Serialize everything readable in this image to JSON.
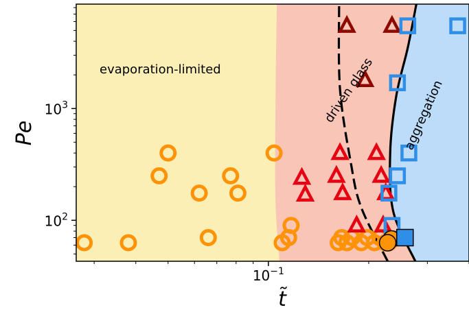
{
  "chart_data": {
    "type": "scatter",
    "xlabel": "t̃",
    "ylabel": "Pe",
    "xscale": "log",
    "yscale": "log",
    "xlim": [
      0.0265,
      0.4
    ],
    "ylim": [
      43,
      8600
    ],
    "x_ticks": [
      {
        "value": 0.1,
        "base": "10",
        "exp": "−1"
      }
    ],
    "y_ticks": [
      {
        "value": 100,
        "base": "10",
        "exp": "2"
      },
      {
        "value": 1000,
        "base": "10",
        "exp": "3"
      }
    ],
    "grid": false,
    "legend": "none",
    "colors": {
      "evaporation_region": "#fbefb5",
      "glass_region": "#f9c5b7",
      "aggregation_region": "#bcdcfa",
      "orange": "#ff9308",
      "red": "#e50012",
      "dark_red": "#8e0a00",
      "blue": "#2f8fe8",
      "boundary": "#000000"
    },
    "regions": [
      {
        "name": "evaporation-limited",
        "label": "evaporation-limited"
      },
      {
        "name": "driven-glass",
        "label": "driven glass"
      },
      {
        "name": "aggregation",
        "label": "aggregation"
      }
    ],
    "boundary_glass_evaporation": [
      [
        0.108,
        43
      ],
      [
        0.105,
        150
      ],
      [
        0.105,
        1000
      ],
      [
        0.106,
        8600
      ]
    ],
    "boundary_dashed": [
      [
        0.228,
        43
      ],
      [
        0.19,
        130
      ],
      [
        0.177,
        320
      ],
      [
        0.164,
        1500
      ],
      [
        0.163,
        8600
      ]
    ],
    "boundary_solid": [
      [
        0.276,
        43
      ],
      [
        0.237,
        120
      ],
      [
        0.232,
        400
      ],
      [
        0.242,
        1300
      ],
      [
        0.262,
        3500
      ],
      [
        0.278,
        8600
      ]
    ],
    "series": [
      {
        "marker": "circle",
        "color": "orange",
        "points": [
          [
            0.028,
            63
          ],
          [
            0.038,
            63
          ],
          [
            0.047,
            250
          ],
          [
            0.05,
            400
          ],
          [
            0.062,
            175
          ],
          [
            0.066,
            70
          ],
          [
            0.077,
            250
          ],
          [
            0.081,
            175
          ],
          [
            0.104,
            400
          ],
          [
            0.11,
            63
          ],
          [
            0.115,
            70
          ],
          [
            0.117,
            90
          ],
          [
            0.162,
            63
          ],
          [
            0.166,
            70
          ],
          [
            0.172,
            63
          ],
          [
            0.178,
            70
          ],
          [
            0.19,
            63
          ],
          [
            0.198,
            70
          ],
          [
            0.208,
            63
          ],
          [
            0.216,
            70
          ],
          [
            0.224,
            63
          ],
          [
            0.23,
            63
          ]
        ]
      },
      {
        "marker": "triangle",
        "color": "red",
        "points": [
          [
            0.126,
            240
          ],
          [
            0.129,
            170
          ],
          [
            0.164,
            400
          ],
          [
            0.16,
            250
          ],
          [
            0.167,
            175
          ],
          [
            0.184,
            90
          ],
          [
            0.211,
            400
          ],
          [
            0.218,
            250
          ],
          [
            0.225,
            175
          ],
          [
            0.221,
            90
          ]
        ]
      },
      {
        "marker": "triangle",
        "color": "dark_red",
        "points": [
          [
            0.172,
            5500
          ],
          [
            0.195,
            1800
          ],
          [
            0.235,
            5500
          ]
        ]
      },
      {
        "marker": "square",
        "color": "blue",
        "points": [
          [
            0.262,
            5500
          ],
          [
            0.37,
            5500
          ],
          [
            0.244,
            1700
          ],
          [
            0.264,
            400
          ],
          [
            0.244,
            250
          ],
          [
            0.23,
            175
          ],
          [
            0.235,
            90
          ]
        ]
      },
      {
        "marker": "filled-circle",
        "color": "orange",
        "points": [
          [
            0.234,
            68
          ],
          [
            0.228,
            63
          ]
        ]
      },
      {
        "marker": "filled-square",
        "color": "blue",
        "points": [
          [
            0.257,
            70
          ]
        ]
      }
    ],
    "annotations": [
      "evaporation-limited",
      "driven glass",
      "aggregation"
    ]
  }
}
